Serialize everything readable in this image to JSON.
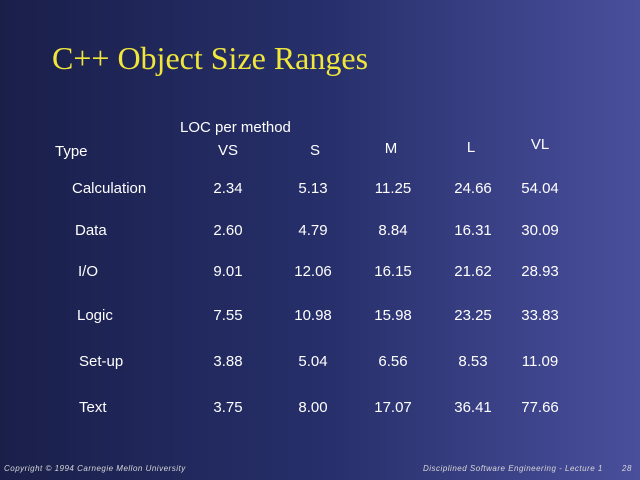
{
  "title": "C++ Object Size Ranges",
  "table": {
    "group_header": "LOC per method",
    "columns": [
      "Type",
      "VS",
      "S",
      "M",
      "L",
      "VL"
    ],
    "rows": [
      [
        "Calculation",
        "2.34",
        "5.13",
        "11.25",
        "24.66",
        "54.04"
      ],
      [
        "Data",
        "2.60",
        "4.79",
        "8.84",
        "16.31",
        "30.09"
      ],
      [
        "I/O",
        "9.01",
        "12.06",
        "16.15",
        "21.62",
        "28.93"
      ],
      [
        "Logic",
        "7.55",
        "10.98",
        "15.98",
        "23.25",
        "33.83"
      ],
      [
        "Set-up",
        "3.88",
        "5.04",
        "6.56",
        "8.53",
        "11.09"
      ],
      [
        "Text",
        "3.75",
        "8.00",
        "17.07",
        "36.41",
        "77.66"
      ]
    ]
  },
  "footer": {
    "left": "Copyright © 1994 Carnegie Mellon University",
    "right": "Disciplined Software Engineering - Lecture 1",
    "page": "28"
  }
}
